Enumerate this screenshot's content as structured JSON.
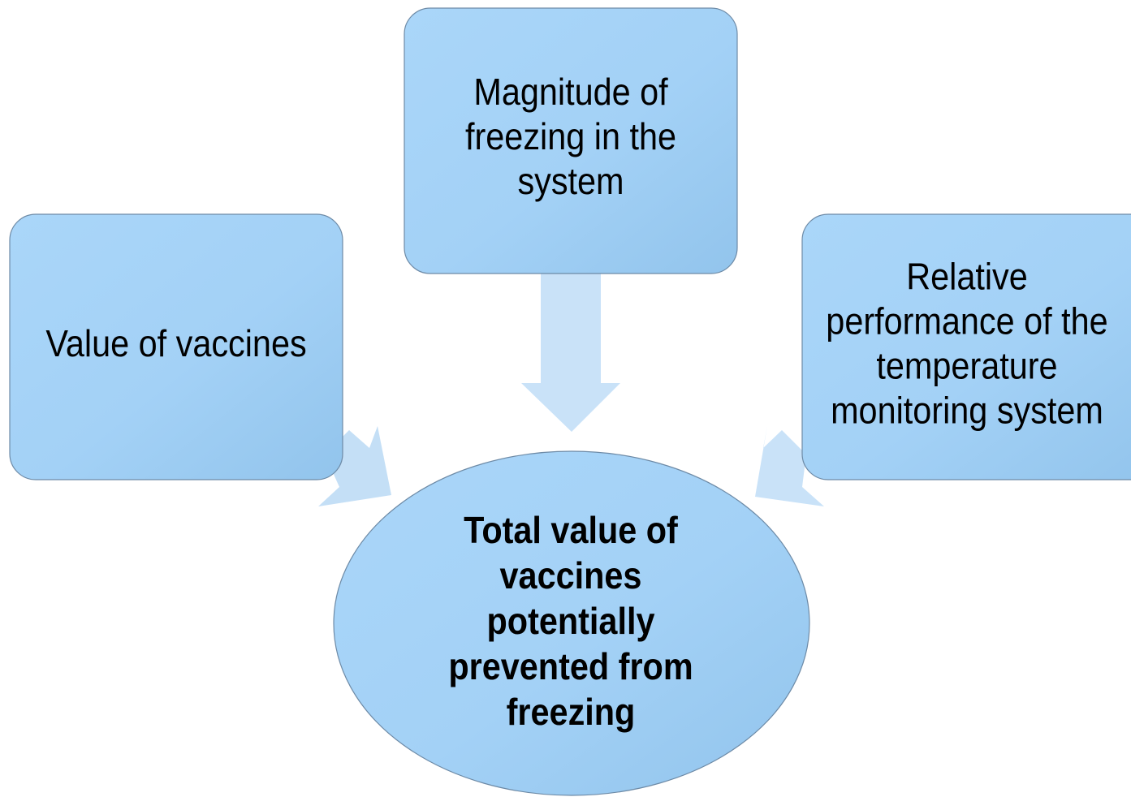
{
  "nodes": [
    {
      "lines": [
        "Magnitude of",
        "freezing in the",
        "system"
      ]
    },
    {
      "lines": [
        "Value of vaccines"
      ]
    },
    {
      "lines": [
        "Relative",
        "performance of the",
        "temperature",
        "monitoring system"
      ]
    },
    {
      "lines": [
        "Total value of",
        "vaccines",
        "potentially",
        "prevented from",
        "freezing"
      ]
    }
  ]
}
